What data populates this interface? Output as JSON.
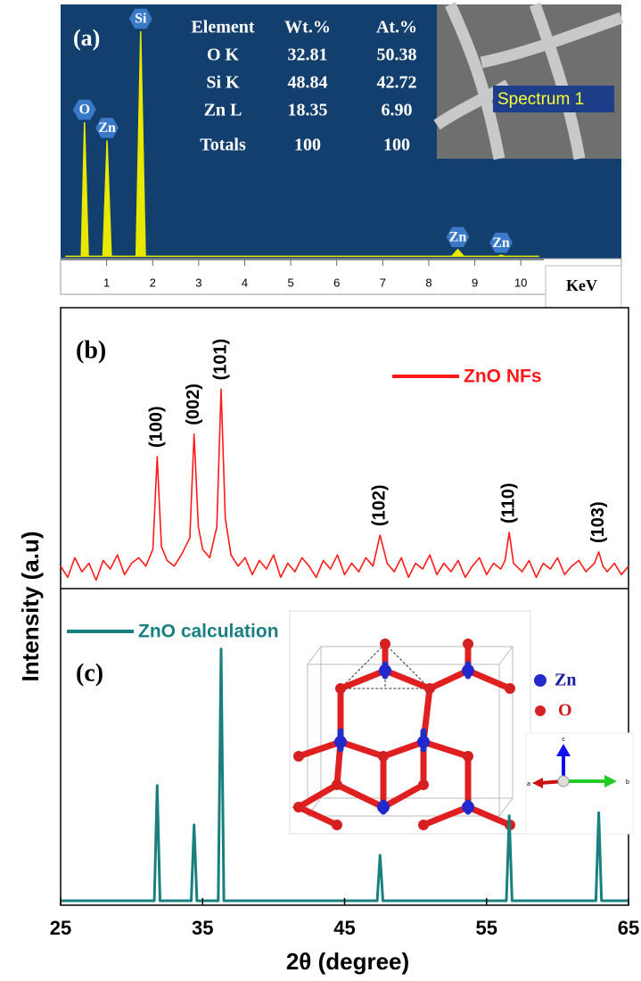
{
  "chart_data": [
    {
      "type": "line",
      "panel_label": "(a)",
      "xlabel": "KeV",
      "x": [
        0.1,
        0.45,
        0.52,
        0.6,
        0.92,
        1.01,
        1.1,
        1.64,
        1.74,
        1.84,
        8.5,
        8.63,
        8.76,
        9.5,
        9.57,
        9.65,
        10.4
      ],
      "values": [
        1,
        1,
        60,
        1,
        1,
        52,
        1,
        1,
        100,
        1,
        1,
        4,
        1,
        1,
        1.5,
        1,
        1
      ],
      "color": "#e8e800",
      "xlim": [
        0,
        10.5
      ],
      "ylim": [
        0,
        100
      ],
      "xticks": [
        1,
        2,
        3,
        4,
        5,
        6,
        7,
        8,
        9,
        10
      ],
      "peak_labels": [
        "O",
        "Zn",
        "Si",
        "Zn",
        "Zn"
      ],
      "peak_positions": [
        0.52,
        1.01,
        1.74,
        8.63,
        9.57
      ],
      "table": {
        "columns": [
          "Element",
          "Wt.%",
          "At.%"
        ],
        "rows": [
          [
            "O K",
            "32.81",
            "50.38"
          ],
          [
            "Si K",
            "48.84",
            "42.72"
          ],
          [
            "Zn L",
            "18.35",
            "6.90"
          ],
          [
            "Totals",
            "100",
            "100"
          ]
        ]
      },
      "image_label": "Spectrum 1"
    },
    {
      "type": "line",
      "panel_label": "(b)",
      "ylabel": "Intensity (a.u)",
      "series": [
        {
          "name": "ZnO NFs",
          "color": "#ff1a1a",
          "x": [
            25,
            25.5,
            26,
            26.5,
            27,
            27.5,
            28,
            28.5,
            29,
            29.5,
            30,
            30.5,
            31,
            31.5,
            31.8,
            32.1,
            32.5,
            33,
            33.5,
            34.1,
            34.4,
            34.7,
            35,
            35.5,
            36,
            36.3,
            36.6,
            37,
            37.5,
            38,
            38.5,
            39,
            39.5,
            40,
            40.5,
            41,
            41.5,
            42,
            42.5,
            43,
            43.5,
            44,
            44.5,
            45,
            45.5,
            46,
            46.5,
            47,
            47.5,
            48,
            48.5,
            49,
            49.5,
            50,
            50.5,
            51,
            51.5,
            52,
            52.5,
            53,
            53.5,
            54,
            54.5,
            55,
            55.5,
            56,
            56.3,
            56.6,
            56.9,
            57.5,
            58,
            58.5,
            59,
            59.5,
            60,
            60.5,
            61,
            61.5,
            62,
            62.6,
            62.9,
            63.2,
            63.5,
            64,
            64.5,
            65
          ],
          "values": [
            8,
            4,
            11,
            6,
            9,
            3,
            10,
            7,
            12,
            5,
            9,
            11,
            8,
            14,
            47,
            15,
            10,
            8,
            12,
            18,
            55,
            22,
            14,
            11,
            22,
            71,
            25,
            12,
            8,
            11,
            5,
            10,
            7,
            12,
            4,
            9,
            6,
            11,
            8,
            4,
            10,
            7,
            12,
            5,
            9,
            6,
            11,
            8,
            19,
            9,
            6,
            11,
            4,
            9,
            7,
            12,
            5,
            9,
            6,
            10,
            4,
            8,
            11,
            5,
            9,
            7,
            10,
            20,
            9,
            6,
            10,
            4,
            9,
            7,
            11,
            5,
            8,
            10,
            6,
            9,
            13,
            8,
            6,
            9,
            5,
            8
          ]
        }
      ],
      "xlim": [
        25,
        65
      ],
      "ylim": [
        0,
        100
      ],
      "peak_labels": [
        "(100)",
        "(002)",
        "(101)",
        "(102)",
        "(110)",
        "(103)"
      ],
      "peak_positions": [
        31.8,
        34.4,
        36.3,
        47.5,
        56.6,
        62.9
      ]
    },
    {
      "type": "line",
      "panel_label": "(c)",
      "xlabel": "2θ (degree)",
      "series": [
        {
          "name": "ZnO calculation",
          "color": "#1a7f7f",
          "x": [
            25,
            31.6,
            31.8,
            32.0,
            34.2,
            34.4,
            34.6,
            36.1,
            36.3,
            36.5,
            47.3,
            47.5,
            47.7,
            56.4,
            56.6,
            56.8,
            62.7,
            62.9,
            63.1,
            65
          ],
          "values": [
            0,
            0,
            38,
            0,
            0,
            25,
            0,
            0,
            83,
            0,
            0,
            15,
            0,
            0,
            28,
            0,
            0,
            29,
            0,
            0
          ]
        }
      ],
      "xlim": [
        25,
        65
      ],
      "ylim": [
        0,
        100
      ],
      "xticks": [
        25,
        35,
        45,
        55,
        65
      ],
      "inset_legend": [
        "Zn",
        "O"
      ],
      "inset_axes": [
        "c",
        "a",
        "b"
      ]
    }
  ]
}
